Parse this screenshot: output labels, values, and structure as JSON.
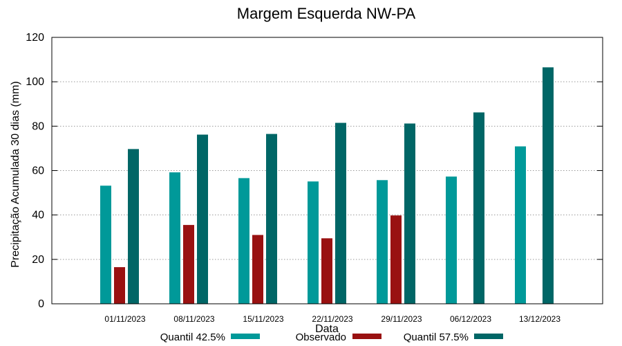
{
  "chart_data": {
    "type": "bar",
    "title": "Margem Esquerda NW-PA",
    "xlabel": "Data",
    "ylabel": "Precipitação Acumulada 30 dias (mm)",
    "ylim": [
      0,
      120
    ],
    "yticks": [
      0,
      20,
      40,
      60,
      80,
      100,
      120
    ],
    "grid": true,
    "legend_position": "bottom",
    "categories": [
      "01/11/2023",
      "08/11/2023",
      "15/11/2023",
      "22/11/2023",
      "29/11/2023",
      "06/12/2023",
      "13/12/2023"
    ],
    "series": [
      {
        "name": "Quantil 42.5%",
        "color": "#009999",
        "values": [
          53.2,
          59.2,
          56.6,
          55.1,
          55.7,
          57.3,
          70.9
        ]
      },
      {
        "name": "Observado",
        "color": "#991111",
        "values": [
          16.5,
          35.5,
          31.0,
          29.5,
          39.8,
          null,
          null
        ]
      },
      {
        "name": "Quantil 57.5%",
        "color": "#006666",
        "values": [
          69.7,
          76.2,
          76.5,
          81.5,
          81.2,
          86.2,
          106.5
        ]
      }
    ]
  }
}
